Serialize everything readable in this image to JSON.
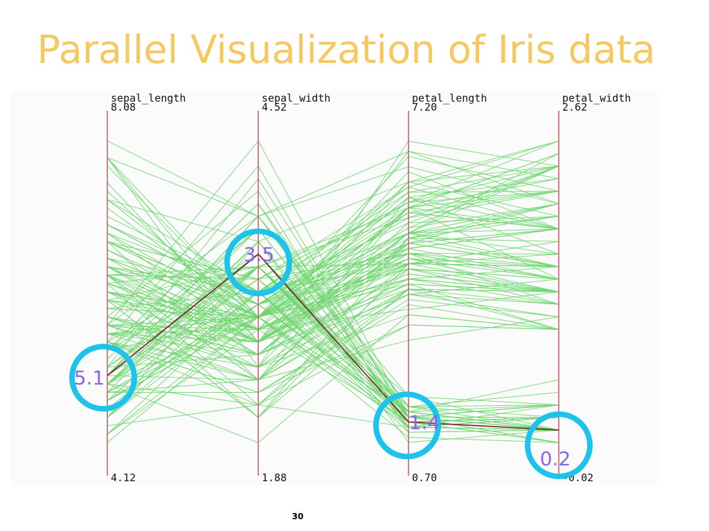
{
  "slide": {
    "title": "Parallel Visualization of Iris data",
    "page_number": "30"
  },
  "colors": {
    "title": "#f6c862",
    "lines": "#6fd66f",
    "highlight": "#7a2a3a",
    "axis": "#b8525a",
    "circle": "#1ec3ec",
    "callout_text": "#8b63e8"
  },
  "chart_data": {
    "type": "parallel-coordinates",
    "title": "Parallel Visualization of Iris data",
    "axes": [
      {
        "name": "sepal_length",
        "max_label": "8.08",
        "min_label": "4.12",
        "range": [
          4.12,
          8.08
        ]
      },
      {
        "name": "sepal_width",
        "max_label": "4.52",
        "min_label": "1.88",
        "range": [
          1.88,
          4.52
        ]
      },
      {
        "name": "petal_length",
        "max_label": "7.20",
        "min_label": "0.70",
        "range": [
          0.7,
          7.2
        ]
      },
      {
        "name": "petal_width",
        "max_label": "2.62",
        "min_label": "-0.02",
        "range": [
          -0.02,
          2.62
        ]
      }
    ],
    "highlighted_record": {
      "values": [
        5.1,
        3.5,
        1.4,
        0.2
      ],
      "labels": [
        "5.1",
        "3.5",
        "1.4",
        "0.2"
      ]
    },
    "records": [
      [
        5.1,
        3.5,
        1.4,
        0.2
      ],
      [
        4.9,
        3.0,
        1.4,
        0.2
      ],
      [
        4.7,
        3.2,
        1.3,
        0.2
      ],
      [
        4.6,
        3.1,
        1.5,
        0.2
      ],
      [
        5.0,
        3.6,
        1.4,
        0.2
      ],
      [
        5.4,
        3.9,
        1.7,
        0.4
      ],
      [
        4.6,
        3.4,
        1.4,
        0.3
      ],
      [
        5.0,
        3.4,
        1.5,
        0.2
      ],
      [
        4.4,
        2.9,
        1.4,
        0.2
      ],
      [
        4.9,
        3.1,
        1.5,
        0.1
      ],
      [
        5.4,
        3.7,
        1.5,
        0.2
      ],
      [
        4.8,
        3.4,
        1.6,
        0.2
      ],
      [
        4.8,
        3.0,
        1.4,
        0.1
      ],
      [
        4.3,
        3.0,
        1.1,
        0.1
      ],
      [
        5.8,
        4.0,
        1.2,
        0.2
      ],
      [
        5.7,
        4.4,
        1.5,
        0.4
      ],
      [
        5.4,
        3.9,
        1.3,
        0.4
      ],
      [
        5.1,
        3.5,
        1.4,
        0.3
      ],
      [
        5.7,
        3.8,
        1.7,
        0.3
      ],
      [
        5.1,
        3.8,
        1.5,
        0.3
      ],
      [
        5.4,
        3.4,
        1.7,
        0.2
      ],
      [
        5.1,
        3.7,
        1.5,
        0.4
      ],
      [
        4.6,
        3.6,
        1.0,
        0.2
      ],
      [
        5.1,
        3.3,
        1.7,
        0.5
      ],
      [
        4.8,
        3.4,
        1.9,
        0.2
      ],
      [
        5.0,
        3.0,
        1.6,
        0.2
      ],
      [
        5.0,
        3.4,
        1.6,
        0.4
      ],
      [
        5.2,
        3.5,
        1.5,
        0.2
      ],
      [
        5.2,
        3.4,
        1.4,
        0.2
      ],
      [
        4.7,
        3.2,
        1.6,
        0.2
      ],
      [
        4.8,
        3.1,
        1.6,
        0.2
      ],
      [
        5.4,
        3.4,
        1.5,
        0.4
      ],
      [
        5.2,
        4.1,
        1.5,
        0.1
      ],
      [
        5.5,
        4.2,
        1.4,
        0.2
      ],
      [
        4.9,
        3.1,
        1.5,
        0.2
      ],
      [
        5.0,
        3.2,
        1.2,
        0.2
      ],
      [
        5.5,
        3.5,
        1.3,
        0.2
      ],
      [
        4.9,
        3.6,
        1.4,
        0.1
      ],
      [
        4.4,
        3.0,
        1.3,
        0.2
      ],
      [
        5.1,
        3.4,
        1.5,
        0.2
      ],
      [
        5.0,
        3.5,
        1.3,
        0.3
      ],
      [
        4.5,
        2.3,
        1.3,
        0.3
      ],
      [
        4.4,
        3.2,
        1.3,
        0.2
      ],
      [
        5.0,
        3.5,
        1.6,
        0.6
      ],
      [
        5.1,
        3.8,
        1.9,
        0.4
      ],
      [
        4.8,
        3.0,
        1.4,
        0.3
      ],
      [
        5.1,
        3.8,
        1.6,
        0.2
      ],
      [
        4.6,
        3.2,
        1.4,
        0.2
      ],
      [
        5.3,
        3.7,
        1.5,
        0.2
      ],
      [
        5.0,
        3.3,
        1.4,
        0.2
      ],
      [
        7.0,
        3.2,
        4.7,
        1.4
      ],
      [
        6.4,
        3.2,
        4.5,
        1.5
      ],
      [
        6.9,
        3.1,
        4.9,
        1.5
      ],
      [
        5.5,
        2.3,
        4.0,
        1.3
      ],
      [
        6.5,
        2.8,
        4.6,
        1.5
      ],
      [
        5.7,
        2.8,
        4.5,
        1.3
      ],
      [
        6.3,
        3.3,
        4.7,
        1.6
      ],
      [
        4.9,
        2.4,
        3.3,
        1.0
      ],
      [
        6.6,
        2.9,
        4.6,
        1.3
      ],
      [
        5.2,
        2.7,
        3.9,
        1.4
      ],
      [
        5.0,
        2.0,
        3.5,
        1.0
      ],
      [
        5.9,
        3.0,
        4.2,
        1.5
      ],
      [
        6.0,
        2.2,
        4.0,
        1.0
      ],
      [
        6.1,
        2.9,
        4.7,
        1.4
      ],
      [
        5.6,
        2.9,
        3.6,
        1.3
      ],
      [
        6.7,
        3.1,
        4.4,
        1.4
      ],
      [
        5.6,
        3.0,
        4.5,
        1.5
      ],
      [
        5.8,
        2.7,
        4.1,
        1.0
      ],
      [
        6.2,
        2.2,
        4.5,
        1.5
      ],
      [
        5.6,
        2.5,
        3.9,
        1.1
      ],
      [
        5.9,
        3.2,
        4.8,
        1.8
      ],
      [
        6.1,
        2.8,
        4.0,
        1.3
      ],
      [
        6.3,
        2.5,
        4.9,
        1.5
      ],
      [
        6.1,
        2.8,
        4.7,
        1.2
      ],
      [
        6.4,
        2.9,
        4.3,
        1.3
      ],
      [
        6.6,
        3.0,
        4.4,
        1.4
      ],
      [
        6.8,
        2.8,
        4.8,
        1.4
      ],
      [
        6.7,
        3.0,
        5.0,
        1.7
      ],
      [
        6.0,
        2.9,
        4.5,
        1.5
      ],
      [
        5.7,
        2.6,
        3.5,
        1.0
      ],
      [
        5.5,
        2.4,
        3.8,
        1.1
      ],
      [
        5.5,
        2.4,
        3.7,
        1.0
      ],
      [
        5.8,
        2.7,
        3.9,
        1.2
      ],
      [
        6.0,
        2.7,
        5.1,
        1.6
      ],
      [
        5.4,
        3.0,
        4.5,
        1.5
      ],
      [
        6.0,
        3.4,
        4.5,
        1.6
      ],
      [
        6.7,
        3.1,
        4.7,
        1.5
      ],
      [
        6.3,
        2.3,
        4.4,
        1.3
      ],
      [
        5.6,
        3.0,
        4.1,
        1.3
      ],
      [
        5.5,
        2.5,
        4.0,
        1.3
      ],
      [
        5.5,
        2.6,
        4.4,
        1.2
      ],
      [
        6.1,
        3.0,
        4.6,
        1.4
      ],
      [
        5.8,
        2.6,
        4.0,
        1.2
      ],
      [
        5.0,
        2.3,
        3.3,
        1.0
      ],
      [
        5.6,
        2.7,
        4.2,
        1.3
      ],
      [
        5.7,
        3.0,
        4.2,
        1.2
      ],
      [
        5.7,
        2.9,
        4.2,
        1.3
      ],
      [
        6.2,
        2.9,
        4.3,
        1.3
      ],
      [
        5.1,
        2.5,
        3.0,
        1.1
      ],
      [
        5.7,
        2.8,
        4.1,
        1.3
      ],
      [
        6.3,
        3.3,
        6.0,
        2.5
      ],
      [
        5.8,
        2.7,
        5.1,
        1.9
      ],
      [
        7.1,
        3.0,
        5.9,
        2.1
      ],
      [
        6.3,
        2.9,
        5.6,
        1.8
      ],
      [
        6.5,
        3.0,
        5.8,
        2.2
      ],
      [
        7.6,
        3.0,
        6.6,
        2.1
      ],
      [
        4.9,
        2.5,
        4.5,
        1.7
      ],
      [
        7.3,
        2.9,
        6.3,
        1.8
      ],
      [
        6.7,
        2.5,
        5.8,
        1.8
      ],
      [
        7.2,
        3.6,
        6.1,
        2.5
      ],
      [
        6.5,
        3.2,
        5.1,
        2.0
      ],
      [
        6.4,
        2.7,
        5.3,
        1.9
      ],
      [
        6.8,
        3.0,
        5.5,
        2.1
      ],
      [
        5.7,
        2.5,
        5.0,
        2.0
      ],
      [
        5.8,
        2.8,
        5.1,
        2.4
      ],
      [
        6.4,
        3.2,
        5.3,
        2.3
      ],
      [
        6.5,
        3.0,
        5.5,
        1.8
      ],
      [
        7.7,
        3.8,
        6.7,
        2.2
      ],
      [
        7.7,
        2.6,
        6.9,
        2.3
      ],
      [
        6.0,
        2.2,
        5.0,
        1.5
      ],
      [
        6.9,
        3.2,
        5.7,
        2.3
      ],
      [
        5.6,
        2.8,
        4.9,
        2.0
      ],
      [
        7.7,
        2.8,
        6.7,
        2.0
      ],
      [
        6.3,
        2.7,
        4.9,
        1.8
      ],
      [
        6.7,
        3.3,
        5.7,
        2.1
      ],
      [
        7.2,
        3.2,
        6.0,
        1.8
      ],
      [
        6.2,
        2.8,
        4.8,
        1.8
      ],
      [
        6.1,
        3.0,
        4.9,
        1.8
      ],
      [
        6.4,
        2.8,
        5.6,
        2.1
      ],
      [
        7.2,
        3.0,
        5.8,
        1.6
      ],
      [
        7.4,
        2.8,
        6.1,
        1.9
      ],
      [
        7.9,
        3.8,
        6.4,
        2.0
      ],
      [
        6.4,
        2.8,
        5.6,
        2.2
      ],
      [
        6.3,
        2.8,
        5.1,
        1.5
      ],
      [
        6.1,
        2.6,
        5.6,
        1.4
      ],
      [
        7.7,
        3.0,
        6.1,
        2.3
      ],
      [
        6.3,
        3.4,
        5.6,
        2.4
      ],
      [
        6.4,
        3.1,
        5.5,
        1.8
      ],
      [
        6.0,
        3.0,
        4.8,
        1.8
      ],
      [
        6.9,
        3.1,
        5.4,
        2.1
      ],
      [
        6.7,
        3.1,
        5.6,
        2.4
      ],
      [
        6.9,
        3.1,
        5.1,
        2.3
      ],
      [
        5.8,
        2.7,
        5.1,
        1.9
      ],
      [
        6.8,
        3.2,
        5.9,
        2.3
      ],
      [
        6.7,
        3.3,
        5.7,
        2.5
      ],
      [
        6.7,
        3.0,
        5.2,
        2.3
      ],
      [
        6.3,
        2.5,
        5.0,
        1.9
      ],
      [
        6.5,
        3.0,
        5.2,
        2.0
      ],
      [
        6.2,
        3.4,
        5.4,
        2.3
      ],
      [
        5.9,
        3.0,
        5.1,
        1.8
      ]
    ]
  }
}
